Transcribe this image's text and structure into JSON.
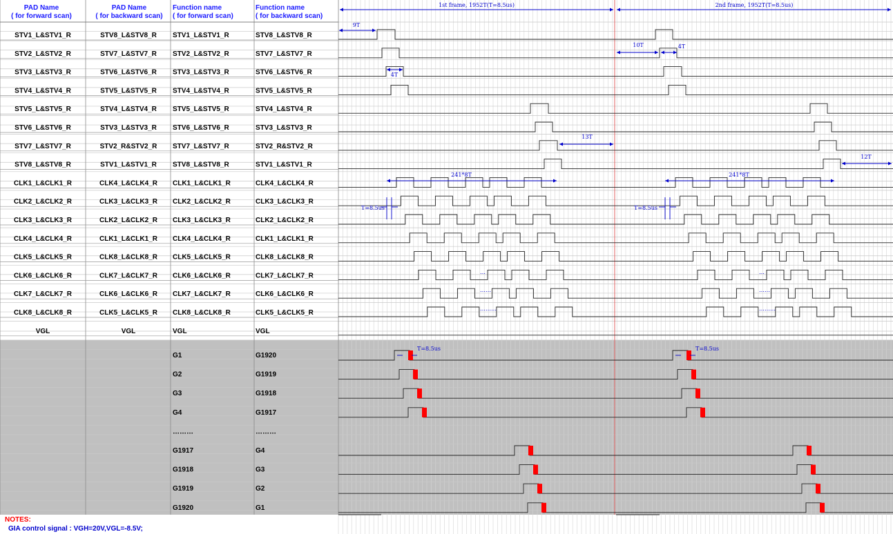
{
  "headers": [
    {
      "line1": "PAD Name",
      "line2": "( for forward scan)"
    },
    {
      "line1": "PAD Name",
      "line2": "( for backward scan)"
    },
    {
      "line1": "Function name",
      "line2": "( for forward scan)"
    },
    {
      "line1": "Function name",
      "line2": "( for backward scan)"
    }
  ],
  "signal_rows": [
    [
      "STV1_L&STV1_R",
      "STV8_L&STV8_R",
      "STV1_L&STV1_R",
      "STV8_L&STV8_R"
    ],
    [
      "STV2_L&STV2_R",
      "STV7_L&STV7_R",
      "STV2_L&STV2_R",
      "STV7_L&STV7_R"
    ],
    [
      "STV3_L&STV3_R",
      "STV6_L&STV6_R",
      "STV3_L&STV3_R",
      "STV6_L&STV6_R"
    ],
    [
      "STV4_L&STV4_R",
      "STV5_L&STV5_R",
      "STV4_L&STV4_R",
      "STV5_L&STV5_R"
    ],
    [
      "STV5_L&STV5_R",
      "STV4_L&STV4_R",
      "STV5_L&STV5_R",
      "STV4_L&STV4_R"
    ],
    [
      "STV6_L&STV6_R",
      "STV3_L&STV3_R",
      "STV6_L&STV6_R",
      "STV3_L&STV3_R"
    ],
    [
      "STV7_L&STV7_R",
      "STV2_R&STV2_R",
      "STV7_L&STV7_R",
      "STV2_R&STV2_R"
    ],
    [
      "STV8_L&STV8_R",
      "STV1_L&STV1_R",
      "STV8_L&STV8_R",
      "STV1_L&STV1_R"
    ],
    [
      "CLK1_L&CLK1_R",
      "CLK4_L&CLK4_R",
      "CLK1_L&CLK1_R",
      "CLK4_L&CLK4_R"
    ],
    [
      "CLK2_L&CLK2_R",
      "CLK3_L&CLK3_R",
      "CLK2_L&CLK2_R",
      "CLK3_L&CLK3_R"
    ],
    [
      "CLK3_L&CLK3_R",
      "CLK2_L&CLK2_R",
      "CLK3_L&CLK3_R",
      "CLK2_L&CLK2_R"
    ],
    [
      "CLK4_L&CLK4_R",
      "CLK1_L&CLK1_R",
      "CLK4_L&CLK4_R",
      "CLK1_L&CLK1_R"
    ],
    [
      "CLK5_L&CLK5_R",
      "CLK8_L&CLK8_R",
      "CLK5_L&CLK5_R",
      "CLK8_L&CLK8_R"
    ],
    [
      "CLK6_L&CLK6_R",
      "CLK7_L&CLK7_R",
      "CLK6_L&CLK6_R",
      "CLK7_L&CLK7_R"
    ],
    [
      "CLK7_L&CLK7_R",
      "CLK6_L&CLK6_R",
      "CLK7_L&CLK7_R",
      "CLK6_L&CLK6_R"
    ],
    [
      "CLK8_L&CLK8_R",
      "CLK5_L&CLK5_R",
      "CLK8_L&CLK8_R",
      "CLK5_L&CLK5_R"
    ],
    [
      "VGL",
      "VGL",
      "VGL",
      "VGL"
    ]
  ],
  "gate_rows": [
    [
      "G1",
      "G1920"
    ],
    [
      "G2",
      "G1919"
    ],
    [
      "G3",
      "G1918"
    ],
    [
      "G4",
      "G1917"
    ],
    [
      "………",
      "………"
    ],
    [
      "G1917",
      "G4"
    ],
    [
      "G1918",
      "G3"
    ],
    [
      "G1919",
      "G2"
    ],
    [
      "G1920",
      "G1"
    ]
  ],
  "annotations": {
    "frame1": "1st frame, 1952T(T=8.5us)",
    "frame2": "2nd frame, 1952T(T=8.5us)",
    "t9": "9T",
    "t4a": "4T",
    "t10": "10T",
    "t4b": "4T",
    "t13": "13T",
    "t12": "12T",
    "t241a": "241*8T",
    "t241b": "241*8T",
    "period_a": "T=8.5us",
    "period_b": "T=8.5us",
    "gate_period_a": "T=8.5us",
    "gate_period_b": "T=8.5us",
    "dots1": "…",
    "dots2": "……",
    "dots3": "………",
    "dots4": "…",
    "dots5": "……",
    "dots6": "………"
  },
  "notes": {
    "title": "NOTES:",
    "text": "GIA control signal : VGH=20V,VGL=-8.5V;"
  },
  "colors": {
    "header_text": "#1a1aff",
    "annotation": "#0000cc",
    "gate_pulse": "#ff0000",
    "gray_band": "#c0c0c0",
    "frame_divider": "#e06060"
  }
}
